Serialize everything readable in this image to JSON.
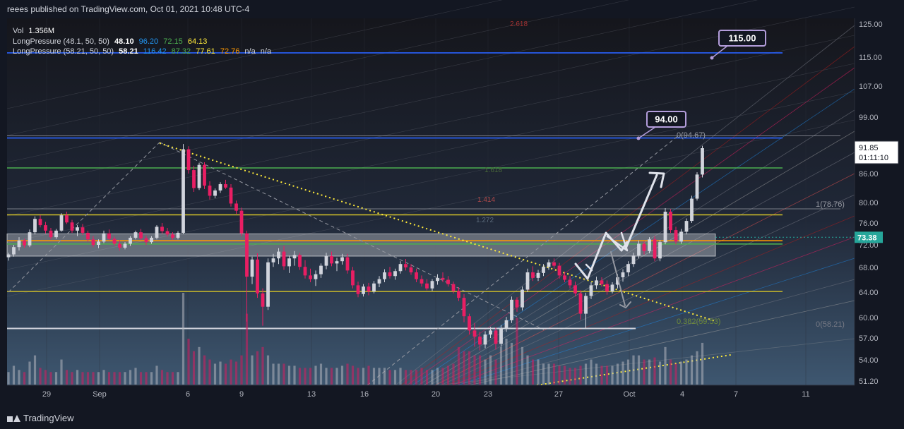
{
  "header": {
    "publisher": "reees published on TradingView.com, Oct 01, 2021 10:48 UTC-4"
  },
  "legend": {
    "vol_label": "Vol",
    "vol_value": "1.356M",
    "ind1_label": "LongPressure (48.1, 50, 50)",
    "ind1_v1": "48.10",
    "ind1_v2": "96.20",
    "ind1_v3": "72.15",
    "ind1_v4": "64.13",
    "ind2_label": "LongPressure (58.21, 50, 50)",
    "ind2_v1": "58.21",
    "ind2_v2": "116.42",
    "ind2_v3": "87.32",
    "ind2_v4": "77.61",
    "ind2_v5": "72.76",
    "ind2_v6": "n/a",
    "ind2_v7": "n/a"
  },
  "brand": {
    "name": "TradingView"
  },
  "colors": {
    "background": "#131722",
    "up": "#d1d4dc",
    "down": "#e91e63",
    "blue_level": "#2962ff",
    "green_level": "#4caf50",
    "yellow_level": "#ffeb3b",
    "orange_level": "#ff9800",
    "last_price_tag": "#26a69a"
  },
  "chart_data": {
    "type": "candlestick",
    "title": "",
    "y_ticks": [
      125,
      115,
      107,
      99,
      86,
      80,
      76,
      72,
      68,
      64,
      60,
      57,
      54,
      51.2
    ],
    "y_tick_labels": [
      "125.00",
      "115.00",
      "107.00",
      "99.00",
      "86.00",
      "80.00",
      "76.00",
      "72.00",
      "68.00",
      "64.00",
      "60.00",
      "57.00",
      "54.00",
      "51.20"
    ],
    "x_tick_labels": [
      "29",
      "Sep",
      "6",
      "9",
      "13",
      "16",
      "20",
      "23",
      "27",
      "Oct",
      "4",
      "7",
      "11"
    ],
    "current_price": "91.85",
    "current_countdown": "01:11:10",
    "price_tag_green": "73.38",
    "annotations": {
      "target_1": "94.00",
      "target_2": "115.00"
    },
    "fib_labels": {
      "top_zero": "0(94.67)",
      "one_right": "1(78.76)",
      "fib_382": "0.382(59.53)",
      "bottom_zero": "0(58.21)",
      "f1618": "1.618",
      "f1414": "1.414",
      "f1272": "1.272",
      "f2618": "2.618"
    },
    "horizontal_levels": [
      {
        "price": 116.3,
        "kind": "blue"
      },
      {
        "price": 94.2,
        "kind": "blue"
      },
      {
        "price": 94.67,
        "kind": "gray"
      },
      {
        "price": 87.3,
        "kind": "green"
      },
      {
        "price": 78.76,
        "kind": "gray"
      },
      {
        "price": 77.6,
        "kind": "yellow"
      },
      {
        "price": 72.75,
        "kind": "orange"
      },
      {
        "price": 72.15,
        "kind": "green"
      },
      {
        "price": 64.1,
        "kind": "yellow"
      },
      {
        "price": 58.4,
        "kind": "white"
      }
    ],
    "supply_zone": [
      70.0,
      74.0
    ],
    "candles": [
      [
        69.8,
        70.6,
        69.2,
        70.3
      ],
      [
        70.3,
        72.0,
        69.9,
        71.6
      ],
      [
        71.6,
        73.4,
        71.0,
        72.8
      ],
      [
        72.8,
        73.1,
        71.5,
        71.9
      ],
      [
        71.9,
        74.8,
        71.6,
        74.3
      ],
      [
        74.3,
        77.3,
        73.9,
        76.8
      ],
      [
        76.8,
        77.5,
        75.2,
        75.6
      ],
      [
        75.6,
        76.2,
        74.1,
        74.6
      ],
      [
        74.6,
        75.1,
        73.0,
        73.4
      ],
      [
        73.4,
        74.9,
        73.1,
        74.6
      ],
      [
        74.6,
        77.9,
        74.4,
        77.5
      ],
      [
        77.5,
        78.2,
        75.8,
        76.1
      ],
      [
        76.1,
        76.6,
        74.2,
        74.6
      ],
      [
        74.6,
        75.6,
        73.6,
        75.2
      ],
      [
        75.2,
        75.8,
        73.8,
        74.2
      ],
      [
        74.2,
        74.6,
        72.6,
        73.0
      ],
      [
        73.0,
        73.6,
        71.6,
        72.0
      ],
      [
        72.0,
        73.0,
        71.4,
        72.6
      ],
      [
        72.6,
        74.6,
        72.3,
        74.1
      ],
      [
        74.1,
        74.8,
        72.8,
        73.1
      ],
      [
        73.1,
        73.5,
        71.8,
        72.2
      ],
      [
        72.2,
        72.8,
        71.0,
        71.5
      ],
      [
        71.5,
        72.5,
        71.2,
        72.2
      ],
      [
        72.2,
        73.6,
        71.8,
        73.3
      ],
      [
        73.3,
        74.6,
        73.0,
        74.3
      ],
      [
        74.3,
        74.9,
        72.9,
        73.2
      ],
      [
        73.2,
        73.7,
        72.0,
        72.5
      ],
      [
        72.5,
        73.6,
        72.2,
        73.3
      ],
      [
        73.3,
        75.6,
        73.0,
        75.3
      ],
      [
        75.3,
        76.0,
        74.0,
        74.5
      ],
      [
        74.5,
        75.1,
        73.5,
        73.9
      ],
      [
        73.9,
        74.3,
        72.9,
        73.3
      ],
      [
        73.3,
        74.5,
        73.0,
        74.2
      ],
      [
        74.2,
        92.8,
        74.0,
        91.6
      ],
      [
        91.6,
        92.3,
        86.0,
        86.8
      ],
      [
        86.8,
        87.8,
        82.2,
        83.0
      ],
      [
        83.0,
        88.5,
        82.6,
        88.0
      ],
      [
        88.0,
        88.6,
        82.8,
        83.5
      ],
      [
        83.5,
        84.4,
        80.6,
        81.4
      ],
      [
        81.4,
        82.9,
        80.9,
        82.5
      ],
      [
        82.5,
        84.2,
        82.0,
        83.8
      ],
      [
        83.8,
        84.7,
        82.8,
        83.1
      ],
      [
        83.1,
        83.8,
        79.2,
        79.8
      ],
      [
        79.8,
        80.4,
        77.8,
        78.4
      ],
      [
        78.4,
        79.0,
        73.6,
        74.1
      ],
      [
        74.1,
        74.6,
        59.4,
        66.5
      ],
      [
        66.5,
        69.9,
        65.3,
        69.4
      ],
      [
        69.4,
        70.5,
        63.1,
        63.8
      ],
      [
        63.8,
        64.6,
        58.8,
        61.7
      ],
      [
        61.7,
        69.6,
        61.2,
        68.9
      ],
      [
        68.9,
        70.4,
        68.1,
        69.6
      ],
      [
        69.6,
        71.4,
        68.6,
        70.8
      ],
      [
        70.8,
        71.8,
        67.6,
        68.2
      ],
      [
        68.2,
        70.1,
        67.1,
        69.6
      ],
      [
        69.6,
        70.9,
        68.3,
        70.2
      ],
      [
        70.2,
        70.6,
        67.6,
        68.1
      ],
      [
        68.1,
        69.3,
        66.2,
        66.7
      ],
      [
        66.7,
        67.8,
        65.6,
        66.1
      ],
      [
        66.1,
        67.5,
        65.0,
        66.9
      ],
      [
        66.9,
        68.7,
        66.3,
        68.3
      ],
      [
        68.3,
        70.6,
        67.7,
        70.0
      ],
      [
        70.0,
        70.8,
        68.2,
        68.7
      ],
      [
        68.7,
        69.7,
        67.4,
        69.1
      ],
      [
        69.1,
        70.4,
        68.5,
        69.8
      ],
      [
        69.8,
        70.4,
        67.0,
        67.5
      ],
      [
        67.5,
        68.1,
        64.6,
        65.1
      ],
      [
        65.1,
        65.7,
        63.2,
        63.7
      ],
      [
        63.7,
        65.3,
        63.3,
        64.9
      ],
      [
        64.9,
        65.5,
        63.5,
        64.1
      ],
      [
        64.1,
        65.8,
        63.8,
        65.4
      ],
      [
        65.4,
        66.6,
        64.8,
        66.1
      ],
      [
        66.1,
        67.7,
        65.6,
        67.2
      ],
      [
        67.2,
        68.1,
        66.2,
        66.6
      ],
      [
        66.6,
        67.8,
        66.0,
        67.4
      ],
      [
        67.4,
        69.1,
        67.0,
        68.6
      ],
      [
        68.6,
        69.5,
        67.5,
        68.0
      ],
      [
        68.0,
        68.6,
        66.8,
        67.2
      ],
      [
        67.2,
        67.8,
        65.6,
        66.1
      ],
      [
        66.1,
        66.7,
        64.9,
        65.4
      ],
      [
        65.4,
        66.1,
        64.3,
        64.6
      ],
      [
        64.6,
        66.1,
        64.2,
        65.8
      ],
      [
        65.8,
        66.9,
        65.2,
        66.3
      ],
      [
        66.3,
        67.2,
        65.6,
        66.0
      ],
      [
        66.0,
        66.6,
        64.9,
        65.3
      ],
      [
        65.3,
        65.7,
        63.8,
        64.2
      ],
      [
        64.2,
        64.8,
        62.6,
        63.1
      ],
      [
        63.1,
        63.7,
        59.3,
        60.2
      ],
      [
        60.2,
        60.6,
        57.5,
        58.1
      ],
      [
        58.1,
        59.2,
        55.8,
        57.2
      ],
      [
        57.2,
        57.9,
        55.3,
        56.1
      ],
      [
        56.1,
        58.0,
        55.6,
        57.5
      ],
      [
        57.5,
        58.6,
        57.0,
        58.1
      ],
      [
        58.1,
        58.5,
        55.4,
        56.2
      ],
      [
        56.2,
        58.9,
        55.8,
        58.4
      ],
      [
        58.4,
        60.1,
        57.9,
        59.6
      ],
      [
        59.6,
        63.3,
        59.2,
        62.8
      ],
      [
        62.8,
        63.2,
        60.9,
        61.6
      ],
      [
        61.6,
        64.9,
        61.1,
        64.4
      ],
      [
        64.4,
        67.8,
        64.0,
        67.2
      ],
      [
        67.2,
        68.2,
        65.8,
        66.3
      ],
      [
        66.3,
        67.6,
        65.8,
        67.1
      ],
      [
        67.1,
        68.6,
        66.6,
        68.1
      ],
      [
        68.1,
        69.4,
        67.6,
        68.9
      ],
      [
        68.9,
        69.6,
        67.8,
        68.3
      ],
      [
        68.3,
        68.8,
        66.2,
        66.7
      ],
      [
        66.7,
        67.3,
        65.6,
        66.0
      ],
      [
        66.0,
        66.6,
        64.6,
        65.1
      ],
      [
        65.1,
        65.7,
        63.3,
        63.8
      ],
      [
        63.8,
        64.3,
        59.7,
        60.6
      ],
      [
        60.6,
        63.9,
        58.3,
        63.4
      ],
      [
        63.4,
        65.6,
        62.9,
        65.1
      ],
      [
        65.1,
        66.5,
        64.5,
        65.9
      ],
      [
        65.9,
        66.4,
        64.9,
        65.3
      ],
      [
        65.3,
        65.9,
        63.6,
        64.1
      ],
      [
        64.1,
        65.6,
        63.8,
        65.2
      ],
      [
        65.2,
        66.9,
        64.6,
        66.4
      ],
      [
        66.4,
        67.7,
        65.7,
        67.2
      ],
      [
        67.2,
        69.1,
        66.6,
        68.6
      ],
      [
        68.6,
        70.6,
        68.1,
        70.1
      ],
      [
        70.1,
        72.8,
        69.6,
        72.2
      ],
      [
        72.2,
        72.7,
        70.3,
        70.9
      ],
      [
        70.9,
        73.4,
        70.5,
        73.0
      ],
      [
        73.0,
        73.6,
        69.1,
        69.6
      ],
      [
        69.6,
        72.9,
        69.1,
        72.5
      ],
      [
        72.5,
        78.9,
        72.1,
        78.2
      ],
      [
        78.2,
        78.7,
        74.2,
        74.7
      ],
      [
        74.7,
        75.3,
        72.1,
        72.6
      ],
      [
        72.6,
        74.9,
        72.2,
        74.4
      ],
      [
        74.4,
        76.9,
        73.9,
        76.4
      ],
      [
        76.4,
        81.4,
        76.0,
        80.8
      ],
      [
        80.8,
        86.3,
        80.4,
        85.8
      ],
      [
        85.8,
        92.4,
        85.2,
        91.85
      ]
    ],
    "volumes": [
      0.3,
      0.45,
      0.35,
      0.3,
      0.55,
      0.7,
      0.4,
      0.35,
      0.3,
      0.3,
      0.6,
      0.35,
      0.3,
      0.35,
      0.3,
      0.3,
      0.3,
      0.3,
      0.35,
      0.3,
      0.3,
      0.3,
      0.3,
      0.35,
      0.4,
      0.3,
      0.3,
      0.3,
      0.45,
      0.35,
      0.3,
      0.3,
      0.3,
      2.2,
      1.1,
      0.8,
      0.9,
      0.7,
      0.6,
      0.5,
      0.55,
      0.5,
      0.6,
      0.55,
      0.7,
      1.7,
      0.7,
      0.8,
      0.9,
      0.7,
      0.5,
      0.5,
      0.5,
      0.45,
      0.45,
      0.4,
      0.4,
      0.4,
      0.45,
      0.5,
      0.4,
      0.4,
      0.4,
      0.45,
      0.5,
      0.45,
      0.4,
      0.4,
      0.45,
      0.4,
      0.4,
      0.4,
      0.35,
      0.35,
      0.4,
      0.35,
      0.35,
      0.35,
      0.4,
      0.35,
      0.35,
      0.4,
      0.4,
      0.45,
      0.5,
      0.9,
      0.8,
      0.8,
      0.7,
      0.7,
      0.6,
      0.7,
      0.6,
      0.9,
      1.1,
      1.0,
      1.6,
      0.9,
      0.7,
      0.6,
      0.6,
      0.5,
      0.5,
      0.5,
      0.45,
      0.45,
      0.4,
      0.4,
      0.45,
      0.5,
      0.6,
      0.5,
      0.45,
      0.45,
      0.45,
      0.5,
      0.55,
      0.6,
      0.7,
      0.7,
      0.6,
      0.6,
      0.65,
      0.55,
      0.9,
      0.6,
      0.5,
      0.55,
      0.6,
      0.7,
      0.8,
      1.0
    ]
  }
}
